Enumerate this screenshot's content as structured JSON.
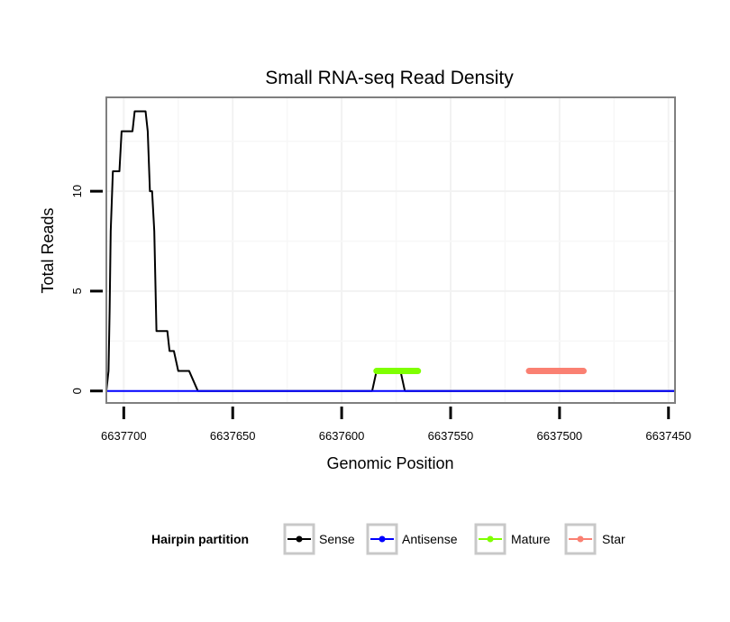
{
  "chart_data": {
    "type": "line",
    "title": "Small RNA-seq Read Density",
    "xlabel": "Genomic Position",
    "ylabel": "Total Reads",
    "xlim": [
      6637708,
      6637447
    ],
    "x_reversed": true,
    "ylim": [
      -0.6,
      14.7
    ],
    "x_ticks": [
      6637700,
      6637650,
      6637600,
      6637550,
      6637500,
      6637450
    ],
    "x_tick_labels": [
      "6637700",
      "6637650",
      "6637600",
      "6637550",
      "6637500",
      "6637450"
    ],
    "y_ticks": [
      0,
      5,
      10
    ],
    "y_tick_labels": [
      "0",
      "5",
      "10"
    ],
    "grid": true,
    "legend": {
      "title": "Hairpin partition",
      "position": "bottom",
      "items": [
        {
          "name": "Sense",
          "color": "#000000"
        },
        {
          "name": "Antisense",
          "color": "#0000ff"
        },
        {
          "name": "Mature",
          "color": "#7fff00"
        },
        {
          "name": "Star",
          "color": "#fa8072"
        }
      ]
    },
    "series": [
      {
        "name": "Sense",
        "color": "#000000",
        "stroke_width": 2,
        "x": [
          6637708,
          6637707,
          6637706.5,
          6637706,
          6637705,
          6637704,
          6637703,
          6637702,
          6637701,
          6637700,
          6637699,
          6637696,
          6637695,
          6637694,
          6637693,
          6637690,
          6637689,
          6637688,
          6637687,
          6637686,
          6637685,
          6637684,
          6637683,
          6637682,
          6637680,
          6637679,
          6637678,
          6637677,
          6637675,
          6637674,
          6637673,
          6637670,
          6637666,
          6637586,
          6637585,
          6637584,
          6637579,
          6637578,
          6637577,
          6637576,
          6637575,
          6637574,
          6637573,
          6637572,
          6637571,
          6637569,
          6637568,
          6637567,
          6637566,
          6637552,
          6637551,
          6637550,
          6637549,
          6637548,
          6637547,
          6637530,
          6637528,
          6637527,
          6637526,
          6637447
        ],
        "y": [
          0,
          1,
          4,
          8,
          11,
          11,
          11,
          11,
          13,
          13,
          13,
          13,
          14,
          14,
          14,
          14,
          13,
          10,
          10,
          8,
          3,
          3,
          3,
          3,
          3,
          2,
          2,
          2,
          1,
          1,
          1,
          1,
          0,
          0,
          0.5,
          1,
          1,
          1,
          1,
          1,
          1,
          1,
          1,
          0.5,
          0,
          0,
          0,
          0,
          0,
          0,
          0,
          0,
          0,
          0,
          0,
          0,
          0,
          0,
          0,
          0
        ]
      },
      {
        "name": "Antisense",
        "color": "#0000ff",
        "stroke_width": 2,
        "x": [
          6637708,
          6637447
        ],
        "y": [
          0,
          0
        ]
      },
      {
        "name": "Mature",
        "color": "#7fff00",
        "stroke_width": 7,
        "x": [
          6637584,
          6637565
        ],
        "y": [
          1,
          1
        ]
      },
      {
        "name": "Star",
        "color": "#fa8072",
        "stroke_width": 7,
        "x": [
          6637514,
          6637489
        ],
        "y": [
          1,
          1
        ]
      }
    ],
    "overlay_order": [
      "Sense",
      "Antisense",
      "Mature",
      "Star"
    ]
  }
}
